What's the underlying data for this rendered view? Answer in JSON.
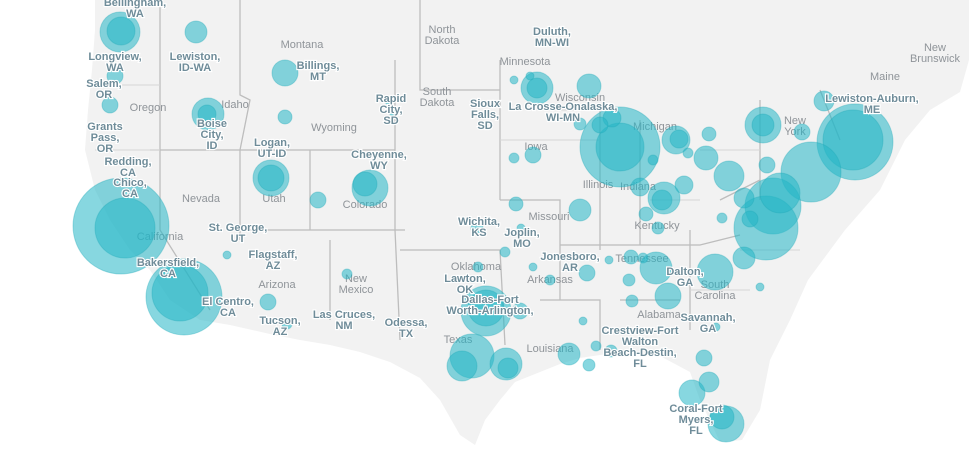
{
  "labels": {
    "states": [
      {
        "id": "north-dakota",
        "text": "North\nDakota"
      },
      {
        "id": "montana",
        "text": "Montana"
      },
      {
        "id": "south-dakota",
        "text": "South\nDakota"
      },
      {
        "id": "oregon",
        "text": "Oregon"
      },
      {
        "id": "idaho",
        "text": "Idaho"
      },
      {
        "id": "wyoming",
        "text": "Wyoming"
      },
      {
        "id": "nevada",
        "text": "Nevada"
      },
      {
        "id": "utah",
        "text": "Utah"
      },
      {
        "id": "colorado",
        "text": "Colorado"
      },
      {
        "id": "arizona",
        "text": "Arizona"
      },
      {
        "id": "new-mexico",
        "text": "New\nMexico"
      },
      {
        "id": "california",
        "text": "California"
      },
      {
        "id": "oklahoma",
        "text": "Oklahoma"
      },
      {
        "id": "texas",
        "text": "Texas"
      },
      {
        "id": "missouri",
        "text": "Missouri"
      },
      {
        "id": "iowa",
        "text": "Iowa"
      },
      {
        "id": "minnesota",
        "text": "Minnesota"
      },
      {
        "id": "wisconsin",
        "text": "Wisconsin"
      },
      {
        "id": "michigan",
        "text": "Michigan"
      },
      {
        "id": "illinois",
        "text": "Illinois"
      },
      {
        "id": "indiana",
        "text": "Indiana"
      },
      {
        "id": "kentucky",
        "text": "Kentucky"
      },
      {
        "id": "tennessee",
        "text": "Tennessee"
      },
      {
        "id": "alabama",
        "text": "Alabama"
      },
      {
        "id": "arkansas",
        "text": "Arkansas"
      },
      {
        "id": "louisiana",
        "text": "Louisiana"
      },
      {
        "id": "south-carolina",
        "text": "South\nCarolina"
      },
      {
        "id": "maine",
        "text": "Maine"
      },
      {
        "id": "new-york",
        "text": "New\nYork"
      },
      {
        "id": "new-brunswick",
        "text": "New\nBrunswick"
      }
    ],
    "cities": [
      {
        "id": "bellingham",
        "text": "Bellingham,\nWA"
      },
      {
        "id": "lewiston-id",
        "text": "Lewiston,\nID-WA"
      },
      {
        "id": "longview",
        "text": "Longview,\nWA"
      },
      {
        "id": "salem",
        "text": "Salem,\nOR"
      },
      {
        "id": "grants-pass",
        "text": "Grants\nPass,\nOR"
      },
      {
        "id": "redding",
        "text": "Redding,\nCA"
      },
      {
        "id": "chico",
        "text": "Chico,\nCA"
      },
      {
        "id": "boise",
        "text": "Boise\nCity,\nID"
      },
      {
        "id": "billings",
        "text": "Billings,\nMT"
      },
      {
        "id": "logan",
        "text": "Logan,\nUT-ID"
      },
      {
        "id": "rapid-city",
        "text": "Rapid\nCity,\nSD"
      },
      {
        "id": "cheyenne",
        "text": "Cheyenne,\nWY"
      },
      {
        "id": "st-george",
        "text": "St. George,\nUT"
      },
      {
        "id": "flagstaff",
        "text": "Flagstaff,\nAZ"
      },
      {
        "id": "bakersfield",
        "text": "Bakersfield,\nCA"
      },
      {
        "id": "el-centro",
        "text": "El Centro,\nCA"
      },
      {
        "id": "tucson",
        "text": "Tucson,\nAZ"
      },
      {
        "id": "las-cruces",
        "text": "Las Cruces,\nNM"
      },
      {
        "id": "odessa",
        "text": "Odessa,\nTX"
      },
      {
        "id": "duluth",
        "text": "Duluth,\nMN-WI"
      },
      {
        "id": "sioux-falls",
        "text": "Sioux\nFalls,\nSD"
      },
      {
        "id": "la-crosse",
        "text": "La Crosse-Onalaska,\nWI-MN"
      },
      {
        "id": "wichita",
        "text": "Wichita,\nKS"
      },
      {
        "id": "joplin",
        "text": "Joplin,\nMO"
      },
      {
        "id": "lawton",
        "text": "Lawton,\nOK"
      },
      {
        "id": "dallas",
        "text": "Dallas-Fort\nWorth-Arlington,"
      },
      {
        "id": "jonesboro",
        "text": "Jonesboro,\nAR"
      },
      {
        "id": "dalton",
        "text": "Dalton,\nGA"
      },
      {
        "id": "savannah",
        "text": "Savannah,\nGA"
      },
      {
        "id": "crestview",
        "text": "Crestview-Fort\nWalton\nBeach-Destin,\nFL"
      },
      {
        "id": "coral",
        "text": "Coral-Fort\nMyers,\nFL"
      },
      {
        "id": "lewiston-me",
        "text": "Lewiston-Auburn,\nME"
      }
    ]
  },
  "bubbles_legend_note": "",
  "colors": {
    "bubble": "#24b7c7",
    "land": "#f2f2f2",
    "border": "#bdbdbd"
  }
}
